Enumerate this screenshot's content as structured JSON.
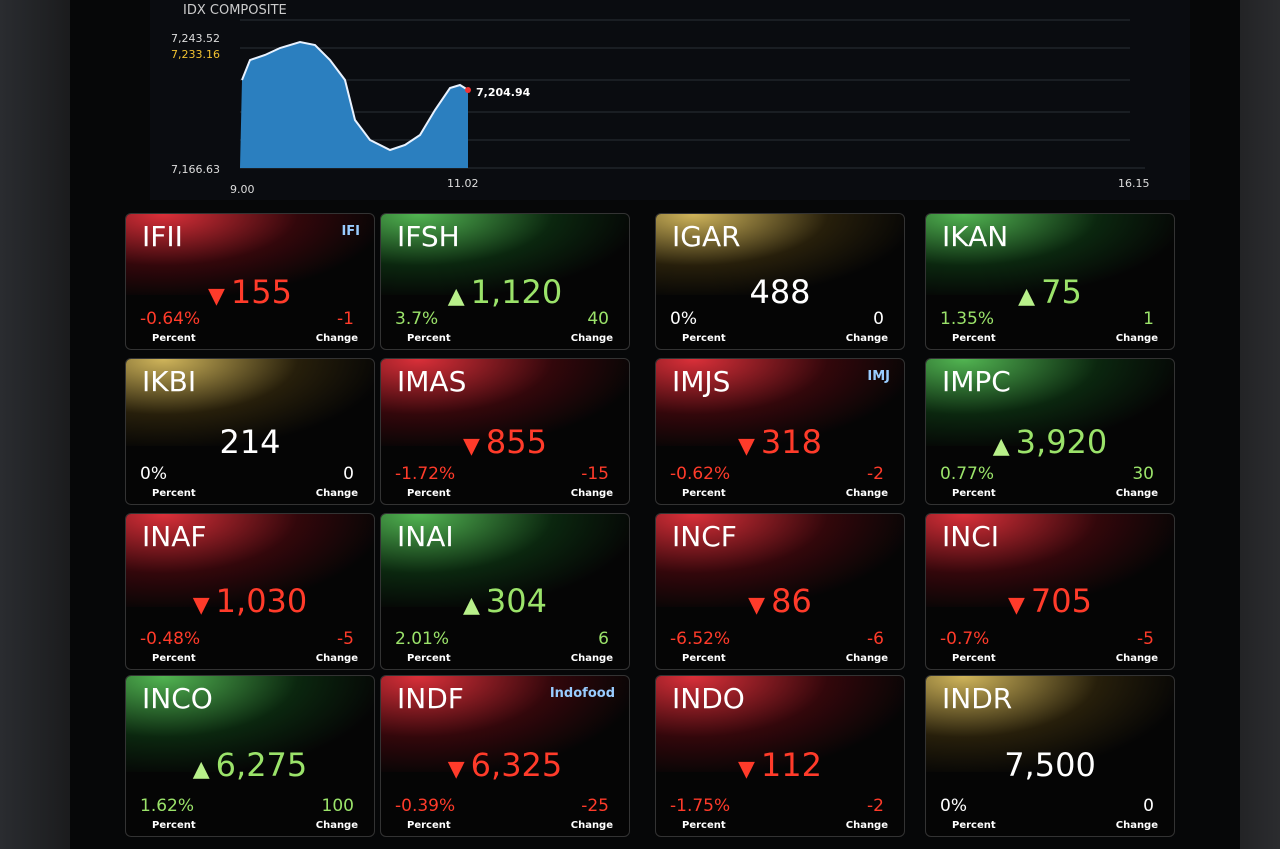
{
  "index": {
    "title": "IDX COMPOSITE",
    "high": "7,243.52",
    "open": "7,233.16",
    "last": "7,204.94",
    "low": "7,166.63",
    "times": [
      "9.00",
      "11.02",
      "16.15"
    ]
  },
  "tiles": [
    {
      "ticker": "IFII",
      "price": "155",
      "percent": "-0.64%",
      "change": "-1",
      "trend": "down",
      "logo": "IFI"
    },
    {
      "ticker": "IFSH",
      "price": "1,120",
      "percent": "3.7%",
      "change": "40",
      "trend": "up"
    },
    {
      "ticker": "IGAR",
      "price": "488",
      "percent": "0%",
      "change": "0",
      "trend": "flat"
    },
    {
      "ticker": "IKAN",
      "price": "75",
      "percent": "1.35%",
      "change": "1",
      "trend": "up"
    },
    {
      "ticker": "IKBI",
      "price": "214",
      "percent": "0%",
      "change": "0",
      "trend": "flat"
    },
    {
      "ticker": "IMAS",
      "price": "855",
      "percent": "-1.72%",
      "change": "-15",
      "trend": "down"
    },
    {
      "ticker": "IMJS",
      "price": "318",
      "percent": "-0.62%",
      "change": "-2",
      "trend": "down",
      "logo": "IMJ"
    },
    {
      "ticker": "IMPC",
      "price": "3,920",
      "percent": "0.77%",
      "change": "30",
      "trend": "up"
    },
    {
      "ticker": "INAF",
      "price": "1,030",
      "percent": "-0.48%",
      "change": "-5",
      "trend": "down"
    },
    {
      "ticker": "INAI",
      "price": "304",
      "percent": "2.01%",
      "change": "6",
      "trend": "up"
    },
    {
      "ticker": "INCF",
      "price": "86",
      "percent": "-6.52%",
      "change": "-6",
      "trend": "down"
    },
    {
      "ticker": "INCI",
      "price": "705",
      "percent": "-0.7%",
      "change": "-5",
      "trend": "down"
    },
    {
      "ticker": "INCO",
      "price": "6,275",
      "percent": "1.62%",
      "change": "100",
      "trend": "up"
    },
    {
      "ticker": "INDF",
      "price": "6,325",
      "percent": "-0.39%",
      "change": "-25",
      "trend": "down",
      "logo": "Indofood"
    },
    {
      "ticker": "INDO",
      "price": "112",
      "percent": "-1.75%",
      "change": "-2",
      "trend": "down"
    },
    {
      "ticker": "INDR",
      "price": "7,500",
      "percent": "0%",
      "change": "0",
      "trend": "flat"
    }
  ],
  "labels": {
    "percent": "Percent",
    "change": "Change"
  }
}
